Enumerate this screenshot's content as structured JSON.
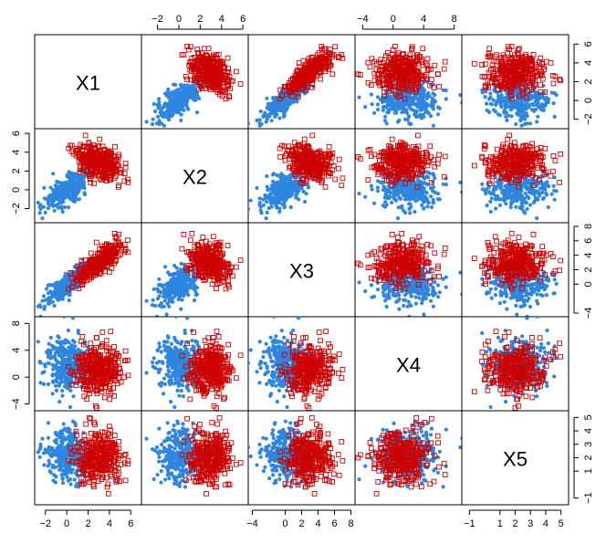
{
  "chart_data": {
    "type": "scatter",
    "plot_kind": "pairs scatterplot matrix",
    "variables": [
      "X1",
      "X2",
      "X3",
      "X4",
      "X5"
    ],
    "ranges": {
      "X1": [
        -3,
        7
      ],
      "X2": [
        -3.5,
        6.5
      ],
      "X3": [
        -4.5,
        8.5
      ],
      "X4": [
        -5,
        9
      ],
      "X5": [
        -1.5,
        5.5
      ]
    },
    "ticks": {
      "X1": [
        -2,
        0,
        2,
        4,
        6
      ],
      "X2": [
        -2,
        0,
        2,
        4,
        6
      ],
      "X3": [
        -4,
        0,
        2,
        4,
        6,
        8
      ],
      "X4": [
        -4,
        0,
        4,
        8
      ],
      "X5": [
        -1,
        1,
        2,
        3,
        4,
        5
      ]
    },
    "tick_labels": {
      "X1": [
        "−2",
        "0",
        "2",
        "4",
        "6"
      ],
      "X2": [
        "−2",
        "0",
        "2",
        "4",
        "6"
      ],
      "X3": [
        "−4",
        "0",
        "2",
        "4",
        "6",
        "8"
      ],
      "X4": [
        "−4",
        "0",
        "4",
        "8"
      ],
      "X5": [
        "−1",
        "1",
        "2",
        "3",
        "4",
        "5"
      ]
    },
    "groups": [
      {
        "marker": "filled-circle",
        "color": "#2e86de",
        "mean": {
          "X1": 0.0,
          "X2": 0.0,
          "X3": 0.0,
          "X4": 2.0,
          "X5": 2.2
        },
        "sd": {
          "X1": 1.0,
          "X2": 1.0,
          "X3": 1.3,
          "X4": 2.0,
          "X5": 1.0
        },
        "corr": {
          "X1-X2": 0.65,
          "X1-X3": 0.82,
          "X2-X3": 0.55
        }
      },
      {
        "marker": "open-square",
        "color": "#cc0000",
        "mean": {
          "X1": 3.0,
          "X2": 3.0,
          "X3": 3.0,
          "X4": 1.0,
          "X5": 2.0
        },
        "sd": {
          "X1": 1.0,
          "X2": 1.0,
          "X3": 1.3,
          "X4": 2.0,
          "X5": 1.0
        },
        "corr": {
          "X1-X2": -0.35,
          "X1-X3": 0.8,
          "X2-X3": -0.3
        }
      }
    ],
    "grid": false,
    "legend": "none"
  }
}
